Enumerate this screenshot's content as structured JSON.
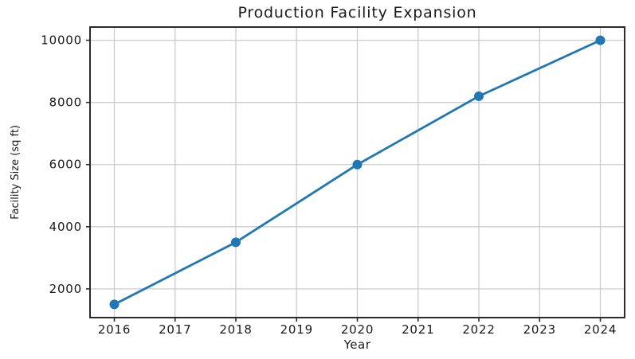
{
  "chart_data": {
    "type": "line",
    "title": "Production Facility Expansion",
    "xlabel": "Year",
    "ylabel": "Facility Size (sq ft)",
    "series": [
      {
        "name": "Facility Size",
        "x": [
          2016,
          2018,
          2020,
          2022,
          2024
        ],
        "values": [
          1500,
          3500,
          6000,
          8200,
          10000
        ]
      }
    ],
    "xticks": [
      2016,
      2017,
      2018,
      2019,
      2020,
      2021,
      2022,
      2023,
      2024
    ],
    "yticks": [
      2000,
      4000,
      6000,
      8000,
      10000
    ],
    "xlim": [
      2015.6,
      2024.4
    ],
    "ylim": [
      1075,
      10425
    ],
    "grid": true,
    "legend_position": "none",
    "marker": "circle",
    "colors": {
      "line": "#1f77b4",
      "marker": "#1f77b4",
      "grid": "#cccccc",
      "spine": "#2b2b2b",
      "text": "#1a1a1a",
      "background": "#ffffff"
    }
  }
}
